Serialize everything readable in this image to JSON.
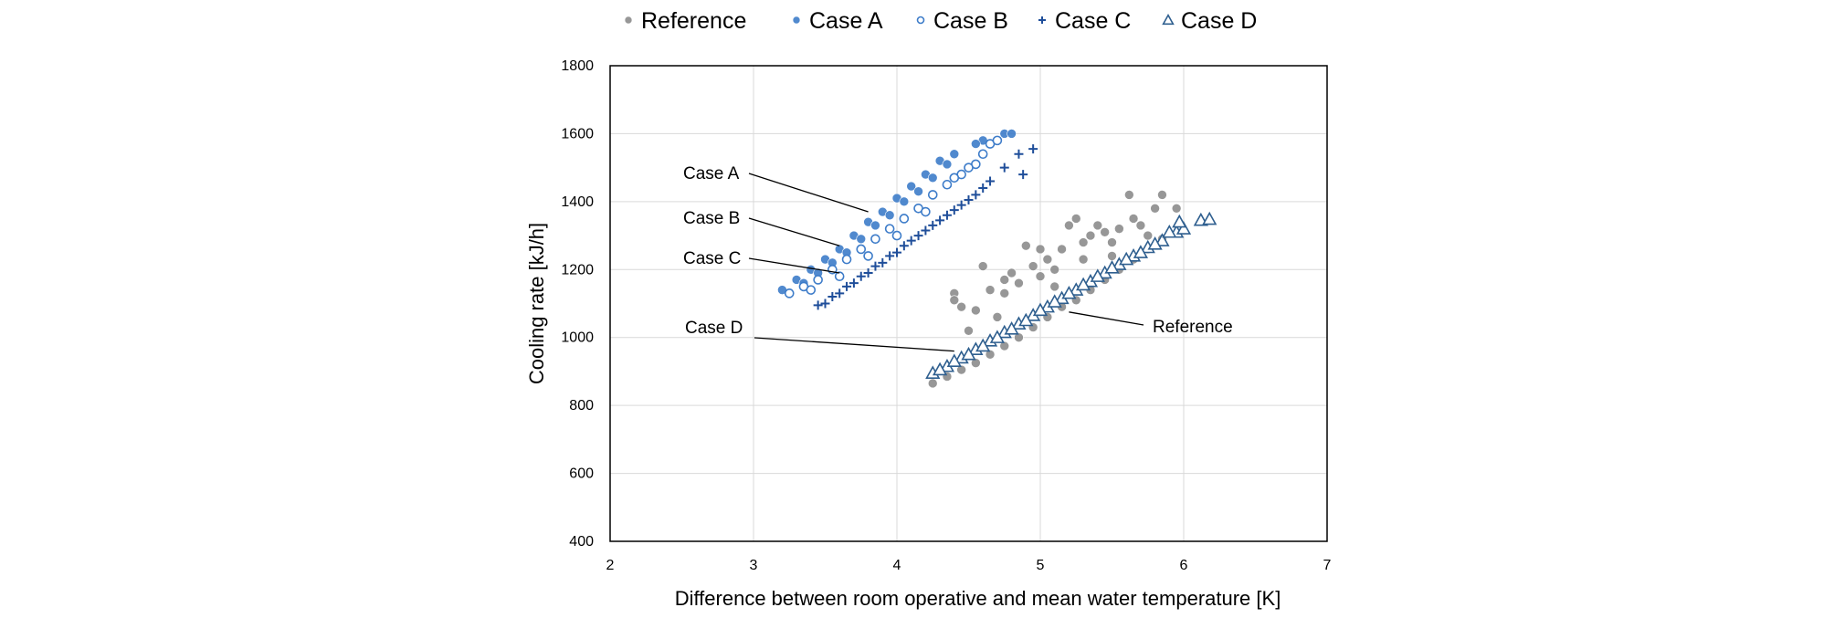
{
  "chart_data": {
    "type": "scatter",
    "title": "",
    "xlabel": "Difference between room operative and mean water temperature   [K]",
    "ylabel": "Cooling rate [kJ/h]",
    "xlim": [
      2,
      7
    ],
    "ylim": [
      400,
      1800
    ],
    "x_ticks": [
      2,
      3,
      4,
      5,
      6,
      7
    ],
    "y_ticks": [
      400,
      600,
      800,
      1000,
      1200,
      1400,
      1600,
      1800
    ],
    "grid": true,
    "legend_position": "top",
    "colors": {
      "reference": "#8c8c8c",
      "case_a": "#3d7cc9",
      "case_b": "#3d7cc9",
      "case_c": "#1f4e9a",
      "case_d": "#2f5f8f"
    },
    "series": [
      {
        "name": "Reference",
        "marker": "filled-circle",
        "points": [
          [
            4.25,
            865
          ],
          [
            4.35,
            885
          ],
          [
            4.45,
            905
          ],
          [
            4.55,
            925
          ],
          [
            4.65,
            950
          ],
          [
            4.75,
            975
          ],
          [
            4.85,
            1000
          ],
          [
            4.95,
            1030
          ],
          [
            5.05,
            1060
          ],
          [
            5.15,
            1090
          ],
          [
            5.25,
            1110
          ],
          [
            5.35,
            1140
          ],
          [
            5.45,
            1170
          ],
          [
            5.55,
            1200
          ],
          [
            5.65,
            1230
          ],
          [
            5.75,
            1260
          ],
          [
            5.85,
            1290
          ],
          [
            4.4,
            1130
          ],
          [
            4.4,
            1110
          ],
          [
            4.45,
            1090
          ],
          [
            4.55,
            1080
          ],
          [
            4.6,
            1210
          ],
          [
            4.65,
            1140
          ],
          [
            4.75,
            1130
          ],
          [
            4.75,
            1170
          ],
          [
            4.8,
            1190
          ],
          [
            4.85,
            1160
          ],
          [
            4.9,
            1270
          ],
          [
            4.95,
            1210
          ],
          [
            5.0,
            1260
          ],
          [
            5.05,
            1230
          ],
          [
            5.1,
            1200
          ],
          [
            5.15,
            1260
          ],
          [
            5.2,
            1330
          ],
          [
            5.25,
            1350
          ],
          [
            5.3,
            1280
          ],
          [
            5.35,
            1300
          ],
          [
            5.4,
            1330
          ],
          [
            5.45,
            1310
          ],
          [
            5.5,
            1280
          ],
          [
            5.55,
            1320
          ],
          [
            5.62,
            1420
          ],
          [
            5.65,
            1350
          ],
          [
            5.7,
            1330
          ],
          [
            5.75,
            1300
          ],
          [
            5.8,
            1380
          ],
          [
            5.85,
            1420
          ],
          [
            5.95,
            1380
          ],
          [
            5.0,
            1180
          ],
          [
            5.1,
            1150
          ],
          [
            4.7,
            1060
          ],
          [
            4.5,
            1020
          ],
          [
            5.3,
            1230
          ],
          [
            5.5,
            1240
          ]
        ]
      },
      {
        "name": "Case A",
        "marker": "filled-circle",
        "points": [
          [
            3.2,
            1140
          ],
          [
            3.3,
            1170
          ],
          [
            3.4,
            1200
          ],
          [
            3.5,
            1230
          ],
          [
            3.6,
            1260
          ],
          [
            3.7,
            1300
          ],
          [
            3.8,
            1340
          ],
          [
            3.9,
            1370
          ],
          [
            4.0,
            1410
          ],
          [
            4.1,
            1445
          ],
          [
            4.2,
            1480
          ],
          [
            4.3,
            1520
          ],
          [
            4.4,
            1540
          ],
          [
            4.6,
            1580
          ],
          [
            4.75,
            1600
          ],
          [
            3.35,
            1160
          ],
          [
            3.45,
            1190
          ],
          [
            3.55,
            1220
          ],
          [
            3.65,
            1250
          ],
          [
            3.75,
            1290
          ],
          [
            3.85,
            1330
          ],
          [
            3.95,
            1360
          ],
          [
            4.05,
            1400
          ],
          [
            4.15,
            1430
          ],
          [
            4.25,
            1470
          ],
          [
            4.35,
            1510
          ],
          [
            4.55,
            1570
          ],
          [
            4.8,
            1600
          ]
        ]
      },
      {
        "name": "Case B",
        "marker": "open-circle",
        "points": [
          [
            3.25,
            1130
          ],
          [
            3.35,
            1150
          ],
          [
            3.45,
            1170
          ],
          [
            3.55,
            1200
          ],
          [
            3.65,
            1230
          ],
          [
            3.75,
            1260
          ],
          [
            3.85,
            1290
          ],
          [
            3.95,
            1320
          ],
          [
            4.05,
            1350
          ],
          [
            4.15,
            1380
          ],
          [
            4.25,
            1420
          ],
          [
            4.35,
            1450
          ],
          [
            4.45,
            1480
          ],
          [
            4.55,
            1510
          ],
          [
            4.6,
            1540
          ],
          [
            4.65,
            1570
          ],
          [
            4.7,
            1580
          ],
          [
            3.4,
            1140
          ],
          [
            3.6,
            1180
          ],
          [
            3.8,
            1240
          ],
          [
            4.0,
            1300
          ],
          [
            4.2,
            1370
          ],
          [
            4.4,
            1470
          ],
          [
            4.5,
            1500
          ]
        ]
      },
      {
        "name": "Case C",
        "marker": "plus",
        "points": [
          [
            3.45,
            1095
          ],
          [
            3.55,
            1120
          ],
          [
            3.65,
            1150
          ],
          [
            3.75,
            1180
          ],
          [
            3.85,
            1210
          ],
          [
            3.95,
            1240
          ],
          [
            4.05,
            1270
          ],
          [
            4.15,
            1300
          ],
          [
            4.25,
            1330
          ],
          [
            4.35,
            1360
          ],
          [
            4.45,
            1390
          ],
          [
            4.55,
            1420
          ],
          [
            4.65,
            1460
          ],
          [
            4.75,
            1500
          ],
          [
            4.85,
            1540
          ],
          [
            4.95,
            1555
          ],
          [
            4.88,
            1480
          ],
          [
            3.5,
            1100
          ],
          [
            3.6,
            1130
          ],
          [
            3.7,
            1160
          ],
          [
            3.8,
            1190
          ],
          [
            3.9,
            1220
          ],
          [
            4.0,
            1250
          ],
          [
            4.1,
            1285
          ],
          [
            4.2,
            1315
          ],
          [
            4.3,
            1345
          ],
          [
            4.4,
            1375
          ],
          [
            4.5,
            1405
          ],
          [
            4.6,
            1440
          ]
        ]
      },
      {
        "name": "Case D",
        "marker": "open-triangle",
        "points": [
          [
            4.25,
            895
          ],
          [
            4.35,
            915
          ],
          [
            4.45,
            940
          ],
          [
            4.55,
            965
          ],
          [
            4.65,
            990
          ],
          [
            4.75,
            1015
          ],
          [
            4.85,
            1040
          ],
          [
            4.95,
            1065
          ],
          [
            5.05,
            1090
          ],
          [
            5.15,
            1115
          ],
          [
            5.25,
            1140
          ],
          [
            5.35,
            1165
          ],
          [
            5.45,
            1190
          ],
          [
            5.55,
            1215
          ],
          [
            5.65,
            1240
          ],
          [
            5.75,
            1265
          ],
          [
            5.85,
            1285
          ],
          [
            5.95,
            1310
          ],
          [
            6.0,
            1320
          ],
          [
            6.12,
            1345
          ],
          [
            6.18,
            1348
          ],
          [
            5.97,
            1340
          ],
          [
            5.9,
            1310
          ],
          [
            4.3,
            905
          ],
          [
            4.4,
            930
          ],
          [
            4.5,
            950
          ],
          [
            4.6,
            975
          ],
          [
            4.7,
            1000
          ],
          [
            4.8,
            1025
          ],
          [
            4.9,
            1050
          ],
          [
            5.0,
            1080
          ],
          [
            5.1,
            1105
          ],
          [
            5.2,
            1130
          ],
          [
            5.3,
            1155
          ],
          [
            5.4,
            1180
          ],
          [
            5.5,
            1205
          ],
          [
            5.6,
            1230
          ],
          [
            5.7,
            1250
          ],
          [
            5.8,
            1275
          ]
        ]
      }
    ],
    "annotations": [
      {
        "label": "Case A",
        "x": 3.8,
        "y": 1370
      },
      {
        "label": "Case B",
        "x": 3.6,
        "y": 1270
      },
      {
        "label": "Case C",
        "x": 3.6,
        "y": 1190
      },
      {
        "label": "Case D",
        "x": 4.4,
        "y": 960
      },
      {
        "label": "Reference",
        "x": 5.2,
        "y": 1075
      }
    ]
  }
}
